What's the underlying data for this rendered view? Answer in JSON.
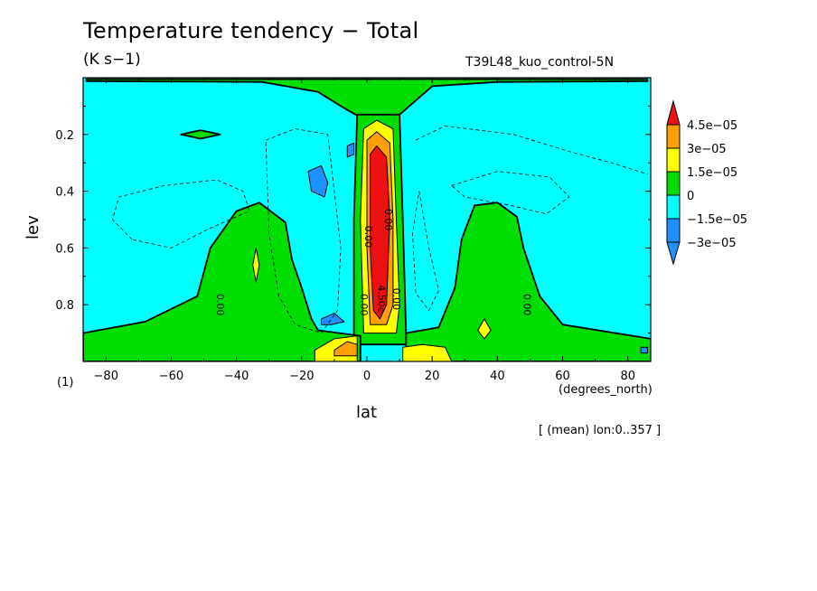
{
  "chart_data": {
    "type": "heatmap",
    "title": "Temperature tendency − Total",
    "units": "(K s−1)",
    "run_label": "T39L48_kuo_control-5N",
    "xlabel": "lat",
    "x_units": "(degrees_north)",
    "ylabel": "lev",
    "panel_id": "(1)",
    "annotation": "[ (mean) lon:0..357 ]",
    "xlim": [
      -87,
      87
    ],
    "ylim": [
      1.0,
      0.0
    ],
    "x_ticks": [
      -80,
      -60,
      -40,
      -20,
      0,
      20,
      40,
      60,
      80
    ],
    "y_ticks": [
      0.2,
      0.4,
      0.6,
      0.8
    ],
    "grid": false,
    "legend_position": "right",
    "colorbar": [
      {
        "label": "",
        "color": "#1e90ff"
      },
      {
        "label": "−3e−05",
        "color": "#1e90ff"
      },
      {
        "label": "−1.5e−05",
        "color": "#00ffff"
      },
      {
        "label": "0",
        "color": "#00dd00"
      },
      {
        "label": "1.5e−05",
        "color": "#ffff00"
      },
      {
        "label": "3e−05",
        "color": "#ffa000"
      },
      {
        "label": "4.5e−05",
        "color": "#ee1111"
      }
    ],
    "contour_labels": [
      "0.00",
      "0.00",
      "0.00",
      "0.00",
      "0.00",
      "4.50e",
      "0.00"
    ],
    "regions": [
      {
        "name": "background",
        "level": "-1.5e-05 to 0",
        "points": []
      },
      {
        "name": "top-green-strip",
        "level": "0 to 1.5e-05",
        "points": [
          [
            -86,
            0.005
          ],
          [
            86,
            0.005
          ],
          [
            86,
            0.012
          ],
          [
            40,
            0.015
          ],
          [
            20,
            0.03
          ],
          [
            13,
            0.1
          ],
          [
            9,
            0.14
          ],
          [
            -2,
            0.14
          ],
          [
            -8,
            0.1
          ],
          [
            -15,
            0.05
          ],
          [
            -32,
            0.015
          ],
          [
            -86,
            0.012
          ]
        ]
      },
      {
        "name": "equatorial-green-column",
        "level": "0 to 1.5e-05",
        "points": [
          [
            -3,
            0.13
          ],
          [
            10,
            0.13
          ],
          [
            11,
            0.5
          ],
          [
            12,
            0.9
          ],
          [
            13,
            0.94
          ],
          [
            -4,
            0.94
          ],
          [
            -4,
            0.5
          ]
        ]
      },
      {
        "name": "green-blob-0.2",
        "level": "0 to 1.5e-05",
        "points": [
          [
            -57,
            0.2
          ],
          [
            -51,
            0.185
          ],
          [
            -45,
            0.2
          ],
          [
            -51,
            0.215
          ]
        ]
      },
      {
        "name": "green-south-hump",
        "level": "0 to 1.5e-05",
        "points": [
          [
            -87,
            0.9
          ],
          [
            -68,
            0.86
          ],
          [
            -52,
            0.77
          ],
          [
            -48,
            0.6
          ],
          [
            -40,
            0.47
          ],
          [
            -33,
            0.44
          ],
          [
            -25,
            0.51
          ],
          [
            -23,
            0.64
          ],
          [
            -20,
            0.74
          ],
          [
            -17,
            0.85
          ],
          [
            -15,
            0.89
          ],
          [
            -2,
            0.91
          ],
          [
            -2,
            1.0
          ],
          [
            -87,
            1.0
          ]
        ]
      },
      {
        "name": "green-north-hump",
        "level": "0 to 1.5e-05",
        "points": [
          [
            12,
            0.9
          ],
          [
            22,
            0.88
          ],
          [
            27,
            0.74
          ],
          [
            29,
            0.57
          ],
          [
            33,
            0.45
          ],
          [
            40,
            0.44
          ],
          [
            46,
            0.49
          ],
          [
            48,
            0.6
          ],
          [
            53,
            0.77
          ],
          [
            60,
            0.87
          ],
          [
            87,
            0.92
          ],
          [
            87,
            1.0
          ],
          [
            12,
            1.0
          ]
        ]
      },
      {
        "name": "yellow-equatorial-column",
        "level": "1.5e-05 to 3e-05",
        "points": [
          [
            -1,
            0.18
          ],
          [
            3,
            0.15
          ],
          [
            8,
            0.18
          ],
          [
            9,
            0.5
          ],
          [
            10,
            0.8
          ],
          [
            9,
            0.9
          ],
          [
            -1,
            0.9
          ],
          [
            -2,
            0.5
          ]
        ]
      },
      {
        "name": "yellow-surface-left",
        "level": "1.5e-05 to 3e-05",
        "points": [
          [
            -16,
            0.96
          ],
          [
            -10,
            0.92
          ],
          [
            -3,
            0.91
          ],
          [
            -3,
            1.0
          ],
          [
            -16,
            1.0
          ]
        ]
      },
      {
        "name": "yellow-surface-right",
        "level": "1.5e-05 to 3e-05",
        "points": [
          [
            11,
            1.0
          ],
          [
            11,
            0.95
          ],
          [
            17,
            0.94
          ],
          [
            24,
            0.95
          ],
          [
            26,
            1.0
          ]
        ]
      },
      {
        "name": "yellow-blob-30N",
        "level": "1.5e-05 to 3e-05",
        "points": [
          [
            36,
            0.85
          ],
          [
            38,
            0.89
          ],
          [
            36,
            0.92
          ],
          [
            34,
            0.89
          ]
        ]
      },
      {
        "name": "yellow-blob-35S",
        "level": "1.5e-05 to 3e-05",
        "points": [
          [
            -34,
            0.6
          ],
          [
            -33,
            0.66
          ],
          [
            -34,
            0.72
          ],
          [
            -35,
            0.66
          ]
        ]
      },
      {
        "name": "orange-equatorial-column",
        "level": "3e-05 to 4.5e-05",
        "points": [
          [
            0,
            0.22
          ],
          [
            3,
            0.19
          ],
          [
            7,
            0.23
          ],
          [
            8,
            0.5
          ],
          [
            8,
            0.8
          ],
          [
            6,
            0.87
          ],
          [
            1,
            0.87
          ],
          [
            0,
            0.6
          ]
        ]
      },
      {
        "name": "orange-surface-left",
        "level": "3e-05 to 4.5e-05",
        "points": [
          [
            -10,
            0.96
          ],
          [
            -6,
            0.93
          ],
          [
            -3,
            0.94
          ],
          [
            -3,
            0.98
          ],
          [
            -10,
            0.98
          ]
        ]
      },
      {
        "name": "red-core",
        "level": "> 4.5e-05",
        "points": [
          [
            1,
            0.27
          ],
          [
            3,
            0.24
          ],
          [
            6,
            0.28
          ],
          [
            7,
            0.5
          ],
          [
            6,
            0.8
          ],
          [
            4,
            0.85
          ],
          [
            2,
            0.82
          ],
          [
            1,
            0.6
          ]
        ]
      },
      {
        "name": "blue-blob-0.4",
        "level": "< -3e-05",
        "points": [
          [
            -18,
            0.33
          ],
          [
            -14,
            0.31
          ],
          [
            -12,
            0.37
          ],
          [
            -13,
            0.42
          ],
          [
            -17,
            0.4
          ]
        ]
      },
      {
        "name": "blue-blob-0.25",
        "level": "< -3e-05",
        "points": [
          [
            -6,
            0.24
          ],
          [
            -4,
            0.23
          ],
          [
            -4,
            0.27
          ],
          [
            -6,
            0.28
          ]
        ]
      },
      {
        "name": "blue-blob-0.85",
        "level": "< -3e-05",
        "points": [
          [
            -14,
            0.85
          ],
          [
            -10,
            0.83
          ],
          [
            -7,
            0.86
          ],
          [
            -11,
            0.87
          ],
          [
            -14,
            0.87
          ]
        ]
      },
      {
        "name": "blue-blob-85N",
        "level": "< -3e-05",
        "points": [
          [
            84,
            0.95
          ],
          [
            86,
            0.95
          ],
          [
            86,
            0.97
          ],
          [
            84,
            0.97
          ]
        ]
      }
    ]
  }
}
